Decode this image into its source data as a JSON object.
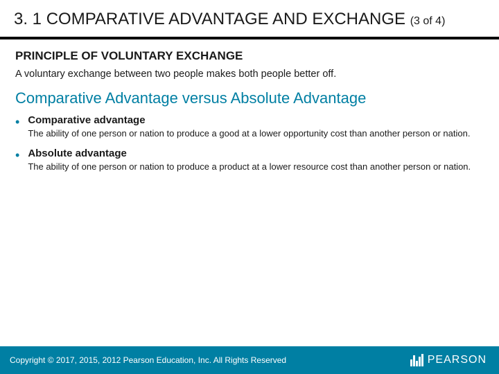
{
  "header": {
    "title": "3. 1 COMPARATIVE ADVANTAGE AND EXCHANGE",
    "pager": "(3 of 4)"
  },
  "principle": {
    "heading": "PRINCIPLE OF VOLUNTARY EXCHANGE",
    "text": "A voluntary exchange between two people makes both people better off."
  },
  "subsection": {
    "heading": "Comparative Advantage versus Absolute Advantage"
  },
  "bullets": [
    {
      "term": "Comparative advantage",
      "definition": "The ability of one person or nation to produce a good at a lower opportunity cost than another person or nation."
    },
    {
      "term": "Absolute advantage",
      "definition": "The ability of one person or nation to produce a product at a lower resource cost than another person or nation."
    }
  ],
  "footer": {
    "copyright": "Copyright © 2017, 2015, 2012 Pearson Education, Inc. All Rights Reserved",
    "logo": "PEARSON"
  },
  "colors": {
    "accent": "#007fa3",
    "text": "#1a1a1a",
    "footer_bg": "#007fa3",
    "footer_text": "#ffffff",
    "background": "#ffffff"
  }
}
